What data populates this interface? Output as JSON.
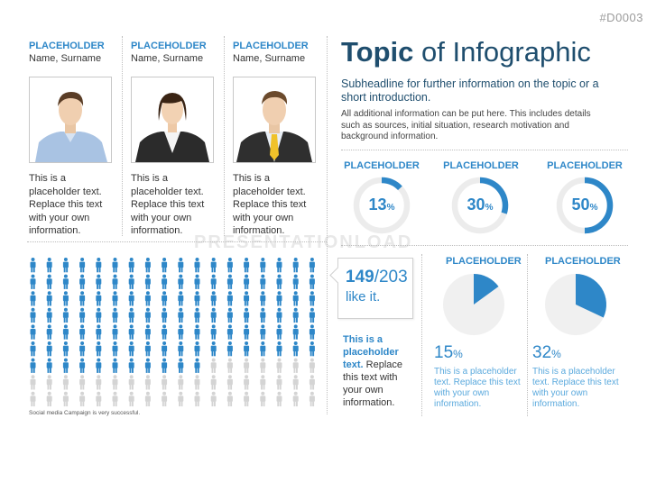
{
  "slide_id": "#D0003",
  "watermark": "PRESENTATIONLOAD",
  "people": [
    {
      "role": "PLACEHOLDER",
      "name": "Name, Surname",
      "text": "This is a placeholder text. Replace this text with your own information.",
      "photo": "man-casual-portrait"
    },
    {
      "role": "PLACEHOLDER",
      "name": "Name, Surname",
      "text": "This is a placeholder text. Replace this text with your own information.",
      "photo": "woman-blazer-portrait"
    },
    {
      "role": "PLACEHOLDER",
      "name": "Name, Surname",
      "text": "This is a placeholder text. Replace this text with your own information.",
      "photo": "man-suit-tie-portrait"
    }
  ],
  "header": {
    "title_bold": "Topic",
    "title_rest": " of Infographic",
    "subheadline": "Subheadline for further information on the topic or a short introduction.",
    "intro": "All additional information can be put here. This includes details such as sources, initial situation, research motivation and background information."
  },
  "rings": [
    {
      "label": "PLACEHOLDER",
      "value": 13,
      "unit": "%"
    },
    {
      "label": "PLACEHOLDER",
      "value": 30,
      "unit": "%"
    },
    {
      "label": "PLACEHOLDER",
      "value": 50,
      "unit": "%"
    }
  ],
  "pies": [
    {
      "label": "PLACEHOLDER",
      "value": 15,
      "unit": "%",
      "text": "This is a placeholder text. Replace this text with your own information."
    },
    {
      "label": "PLACEHOLDER",
      "value": 32,
      "unit": "%",
      "text": "This is a placeholder text. Replace this text with your own information."
    }
  ],
  "people_grid": {
    "total": 203,
    "highlighted": 149,
    "callout_value": "149",
    "callout_total": "/203",
    "callout_sub": "like it."
  },
  "side_text": {
    "bold": "This is a placeholder text.",
    "rest": " Replace this text with your own information."
  },
  "caption": "Social media Campaign is very successful.",
  "colors": {
    "accent": "#2e87c8",
    "dark": "#1f4e6e",
    "track": "#ececec",
    "inactive": "#d4d4d4"
  }
}
